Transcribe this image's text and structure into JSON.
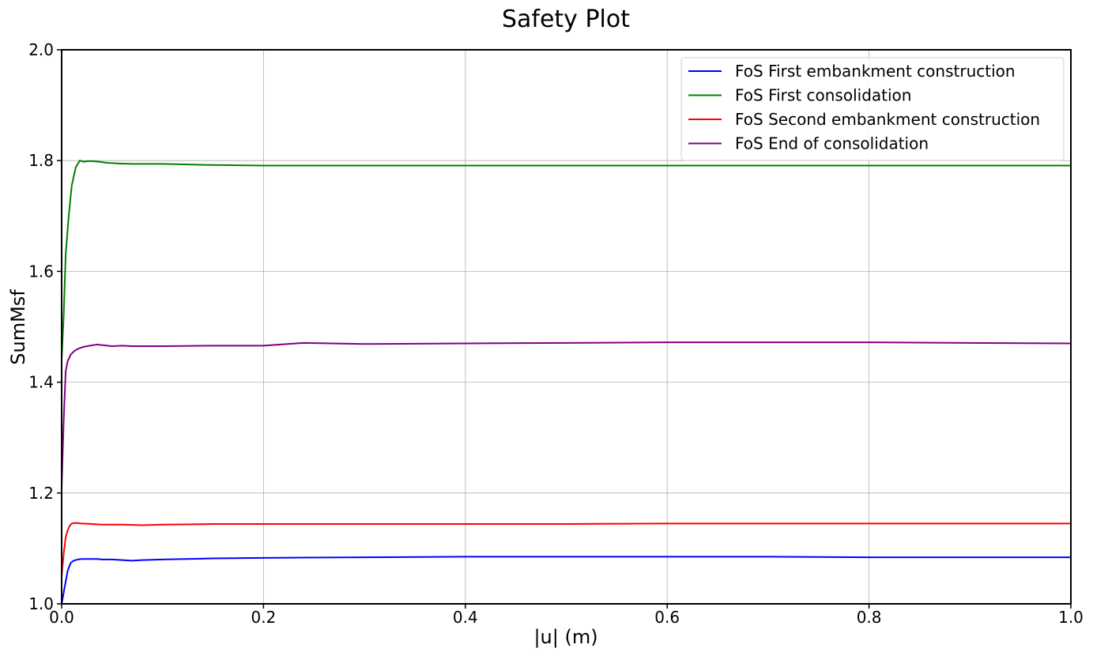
{
  "chart_data": {
    "type": "line",
    "title": "Safety Plot",
    "xlabel": "|u| (m)",
    "ylabel": "SumMsf",
    "xlim": [
      0.0,
      1.0
    ],
    "ylim": [
      1.0,
      2.0
    ],
    "xticks": [
      0.0,
      0.2,
      0.4,
      0.6,
      0.8,
      1.0
    ],
    "xtick_labels": [
      "0.0",
      "0.2",
      "0.4",
      "0.6",
      "0.8",
      "1.0"
    ],
    "yticks": [
      1.0,
      1.2,
      1.4,
      1.6,
      1.8,
      2.0
    ],
    "ytick_labels": [
      "1.0",
      "1.2",
      "1.4",
      "1.6",
      "1.8",
      "2.0"
    ],
    "grid": true,
    "legend_position": "top-right",
    "series": [
      {
        "name": "FoS First embankment construction",
        "color": "#0000ff",
        "x": [
          0.0,
          0.003,
          0.006,
          0.009,
          0.012,
          0.016,
          0.02,
          0.025,
          0.03,
          0.035,
          0.04,
          0.05,
          0.06,
          0.07,
          0.08,
          0.1,
          0.15,
          0.2,
          0.3,
          0.4,
          0.5,
          0.6,
          0.7,
          0.8,
          0.9,
          1.0
        ],
        "y": [
          1.0,
          1.03,
          1.06,
          1.074,
          1.078,
          1.08,
          1.081,
          1.081,
          1.081,
          1.081,
          1.08,
          1.08,
          1.079,
          1.078,
          1.079,
          1.08,
          1.082,
          1.083,
          1.084,
          1.085,
          1.085,
          1.085,
          1.085,
          1.084,
          1.084,
          1.084
        ]
      },
      {
        "name": "FoS First consolidation",
        "color": "#008000",
        "x": [
          0.0,
          0.002,
          0.004,
          0.007,
          0.01,
          0.014,
          0.018,
          0.022,
          0.026,
          0.03,
          0.037,
          0.045,
          0.055,
          0.07,
          0.08,
          0.1,
          0.15,
          0.2,
          0.3,
          0.4,
          0.5,
          0.6,
          0.7,
          0.8,
          0.9,
          1.0
        ],
        "y": [
          1.44,
          1.52,
          1.63,
          1.7,
          1.755,
          1.788,
          1.8,
          1.798,
          1.799,
          1.799,
          1.798,
          1.796,
          1.795,
          1.794,
          1.794,
          1.794,
          1.792,
          1.791,
          1.791,
          1.791,
          1.791,
          1.791,
          1.791,
          1.791,
          1.791,
          1.791
        ]
      },
      {
        "name": "FoS Second embankment construction",
        "color": "#ff0000",
        "x": [
          0.0,
          0.002,
          0.004,
          0.006,
          0.008,
          0.01,
          0.013,
          0.02,
          0.03,
          0.04,
          0.06,
          0.08,
          0.1,
          0.15,
          0.2,
          0.3,
          0.4,
          0.5,
          0.6,
          0.7,
          0.8,
          0.9,
          1.0
        ],
        "y": [
          1.05,
          1.09,
          1.12,
          1.133,
          1.141,
          1.145,
          1.146,
          1.145,
          1.144,
          1.143,
          1.143,
          1.142,
          1.143,
          1.144,
          1.144,
          1.144,
          1.144,
          1.144,
          1.145,
          1.145,
          1.145,
          1.145,
          1.145
        ]
      },
      {
        "name": "FoS End of consolidation",
        "color": "#800080",
        "x": [
          0.0,
          0.002,
          0.004,
          0.006,
          0.009,
          0.013,
          0.017,
          0.022,
          0.028,
          0.035,
          0.04,
          0.05,
          0.06,
          0.07,
          0.08,
          0.1,
          0.15,
          0.2,
          0.24,
          0.3,
          0.4,
          0.5,
          0.6,
          0.7,
          0.8,
          0.9,
          1.0
        ],
        "y": [
          1.21,
          1.33,
          1.42,
          1.438,
          1.45,
          1.457,
          1.461,
          1.464,
          1.466,
          1.468,
          1.467,
          1.465,
          1.466,
          1.465,
          1.465,
          1.465,
          1.466,
          1.466,
          1.471,
          1.469,
          1.47,
          1.471,
          1.472,
          1.472,
          1.472,
          1.471,
          1.47
        ]
      }
    ]
  }
}
